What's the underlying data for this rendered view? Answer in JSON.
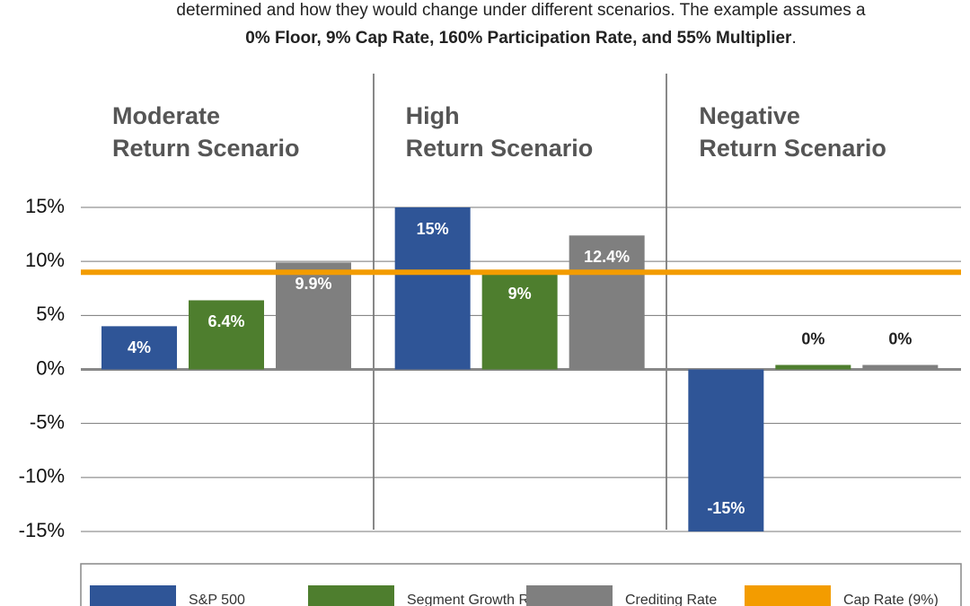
{
  "chart_data": {
    "type": "bar",
    "subtitle": [
      "determined and how they would change under different scenarios. The example assumes a",
      "0% Floor, 9% Cap Rate, 160% Participation Rate, and 55% Multiplier",
      "."
    ],
    "categories": [
      [
        "Moderate",
        "Return Scenario"
      ],
      [
        "High",
        "Return Scenario"
      ],
      [
        "Negative",
        "Return Scenario"
      ]
    ],
    "series": [
      {
        "name": "S&P 500",
        "color": "#2f5597",
        "values": [
          4,
          15,
          -15
        ],
        "value_labels": [
          "4%",
          "15%",
          "-15%"
        ]
      },
      {
        "name": "Segment Growth Rate",
        "color": "#4e7e2e",
        "values": [
          6.4,
          9,
          0
        ],
        "value_labels": [
          "6.4%",
          "9%",
          "0%"
        ]
      },
      {
        "name": "Crediting Rate",
        "color": "#7f7f7f",
        "values": [
          9.9,
          12.4,
          0
        ],
        "value_labels": [
          "9.9%",
          "12.4%",
          "0%"
        ]
      }
    ],
    "reference_line": {
      "name": "Cap Rate (9%)",
      "value": 9,
      "color": "#f39c00"
    },
    "ylim": [
      -15,
      15
    ],
    "yticks": [
      {
        "value": -15,
        "label": "-15%"
      },
      {
        "value": -10,
        "label": "-10%"
      },
      {
        "value": -5,
        "label": "-5%"
      },
      {
        "value": 0,
        "label": "0%"
      },
      {
        "value": 5,
        "label": "5%"
      },
      {
        "value": 10,
        "label": "10%"
      },
      {
        "value": 15,
        "label": "15%"
      }
    ],
    "grid": true
  }
}
